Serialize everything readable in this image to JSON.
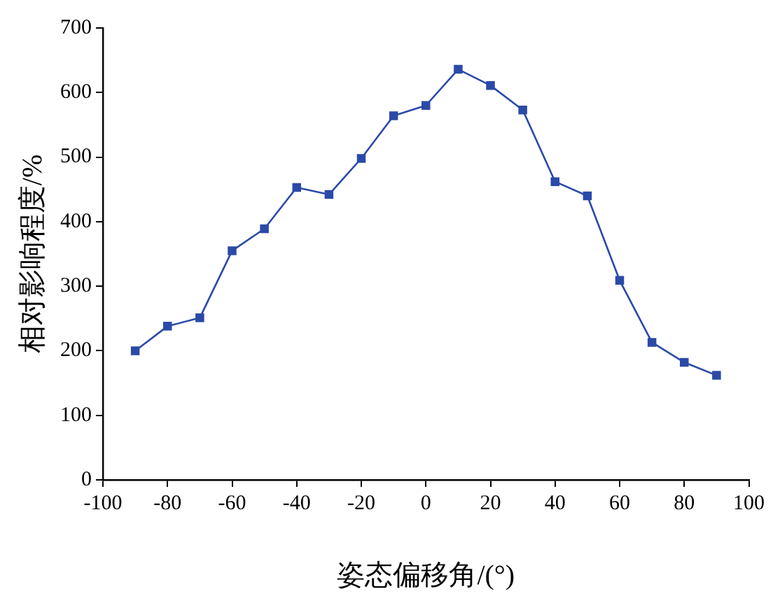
{
  "chart_data": {
    "type": "line",
    "xlabel": "姿态偏移角/(°)",
    "ylabel": "相对影响程度/%",
    "x": [
      -90,
      -80,
      -70,
      -60,
      -50,
      -40,
      -30,
      -20,
      -10,
      0,
      10,
      20,
      30,
      40,
      50,
      60,
      70,
      80,
      90
    ],
    "series": [
      {
        "color": "#2b4aa8",
        "values": [
          200,
          238,
          251,
          355,
          389,
          453,
          442,
          498,
          564,
          580,
          636,
          611,
          573,
          462,
          440,
          309,
          213,
          182,
          162
        ]
      }
    ],
    "xlim": [
      -100,
      100
    ],
    "xticks": [
      -100,
      -80,
      -60,
      -40,
      -20,
      0,
      20,
      40,
      60,
      80,
      100
    ],
    "ylim": [
      0,
      700
    ],
    "yticks": [
      0,
      100,
      200,
      300,
      400,
      500,
      600,
      700
    ],
    "grid": false,
    "legend": false,
    "marker": "square",
    "line_style": "solid"
  }
}
